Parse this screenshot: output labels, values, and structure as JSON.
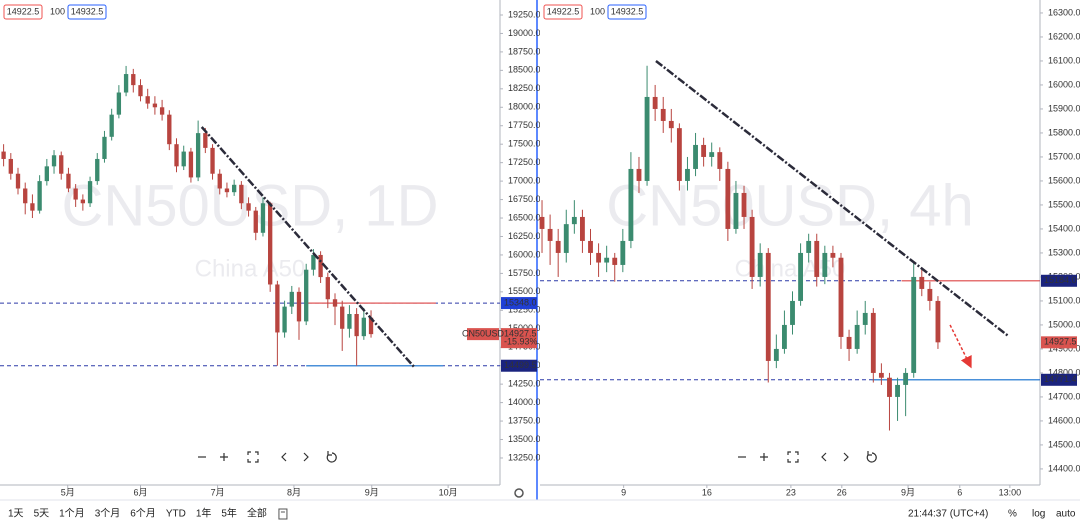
{
  "toolbar": {
    "ranges": [
      "1天",
      "5天",
      "1个月",
      "3个月",
      "6个月",
      "YTD",
      "1年",
      "5年",
      "全部"
    ],
    "time": "21:44:37 (UTC+4)",
    "options": [
      "%",
      "log",
      "auto"
    ]
  },
  "chart_data": [
    {
      "type": "candlestick",
      "watermark": "CN50USD, 1D",
      "description": "China A50",
      "legend": {
        "bid": 14922.5,
        "spread": 100,
        "ask": 14932.5
      },
      "up_color": "#3b8b6f",
      "down_color": "#b8443f",
      "xlim": [
        -0.5,
        68.9
      ],
      "ylim": [
        12884,
        19453
      ],
      "xticks": [
        {
          "value": 8.9,
          "label": "5月"
        },
        {
          "value": 19,
          "label": "6月"
        },
        {
          "value": 29.7,
          "label": "7月"
        },
        {
          "value": 40.3,
          "label": "8月"
        },
        {
          "value": 51.1,
          "label": "9月"
        },
        {
          "value": 61.7,
          "label": "10月"
        }
      ],
      "yticks": [
        {
          "value": 19250,
          "label": "19250.0"
        },
        {
          "value": 19000,
          "label": "19000.0"
        },
        {
          "value": 18750,
          "label": "18750.0"
        },
        {
          "value": 18500,
          "label": "18500.0"
        },
        {
          "value": 18250,
          "label": "18250.0"
        },
        {
          "value": 18000,
          "label": "18000.0"
        },
        {
          "value": 17750,
          "label": "17750.0"
        },
        {
          "value": 17500,
          "label": "17500.0"
        },
        {
          "value": 17250,
          "label": "17250.0"
        },
        {
          "value": 17000,
          "label": "17000.0"
        },
        {
          "value": 16750,
          "label": "16750.0"
        },
        {
          "value": 16500,
          "label": "16500.0"
        },
        {
          "value": 16250,
          "label": "16250.0"
        },
        {
          "value": 16000,
          "label": "16000.0"
        },
        {
          "value": 15750,
          "label": "15750.0"
        },
        {
          "value": 15500,
          "label": "15500.0"
        },
        {
          "value": 15250,
          "label": "15250.0"
        },
        {
          "value": 15000,
          "label": "15000.0"
        },
        {
          "value": 14750,
          "label": "14750.0"
        },
        {
          "value": 14500,
          "label": "14500.0"
        },
        {
          "value": 14250,
          "label": "14250.0"
        },
        {
          "value": 14000,
          "label": "14000.0"
        },
        {
          "value": 13750,
          "label": "13750.0"
        },
        {
          "value": 13500,
          "label": "13500.0"
        },
        {
          "value": 13250,
          "label": "13250.0"
        }
      ],
      "candles": [
        [
          17400,
          17500,
          17200,
          17300
        ],
        [
          17300,
          17380,
          17020,
          17100
        ],
        [
          17100,
          17180,
          16820,
          16900
        ],
        [
          16900,
          16980,
          16550,
          16700
        ],
        [
          16700,
          16820,
          16500,
          16600
        ],
        [
          16600,
          17080,
          16560,
          17000
        ],
        [
          17000,
          17300,
          16940,
          17200
        ],
        [
          17200,
          17420,
          17100,
          17350
        ],
        [
          17350,
          17400,
          17020,
          17100
        ],
        [
          17100,
          17180,
          16850,
          16900
        ],
        [
          16900,
          16960,
          16650,
          16750
        ],
        [
          16750,
          16820,
          16600,
          16700
        ],
        [
          16700,
          17060,
          16650,
          17000
        ],
        [
          17000,
          17380,
          16950,
          17300
        ],
        [
          17300,
          17680,
          17250,
          17600
        ],
        [
          17600,
          17980,
          17550,
          17900
        ],
        [
          17900,
          18300,
          17850,
          18200
        ],
        [
          18200,
          18560,
          18150,
          18450
        ],
        [
          18450,
          18520,
          18200,
          18300
        ],
        [
          18300,
          18380,
          18080,
          18150
        ],
        [
          18150,
          18250,
          17980,
          18050
        ],
        [
          18050,
          18150,
          17900,
          18000
        ],
        [
          18000,
          18100,
          17820,
          17900
        ],
        [
          17900,
          17960,
          17420,
          17500
        ],
        [
          17500,
          17580,
          17120,
          17200
        ],
        [
          17200,
          17480,
          17150,
          17400
        ],
        [
          17400,
          17450,
          16980,
          17050
        ],
        [
          17050,
          17820,
          17000,
          17650
        ],
        [
          17650,
          17720,
          17380,
          17450
        ],
        [
          17450,
          17500,
          17020,
          17100
        ],
        [
          17100,
          17160,
          16820,
          16900
        ],
        [
          16900,
          16980,
          16780,
          16850
        ],
        [
          16850,
          17020,
          16800,
          16950
        ],
        [
          16950,
          17000,
          16620,
          16700
        ],
        [
          16700,
          16780,
          16520,
          16600
        ],
        [
          16600,
          16650,
          16200,
          16300
        ],
        [
          16300,
          16780,
          16250,
          16700
        ],
        [
          16700,
          16720,
          15500,
          15600
        ],
        [
          15600,
          15650,
          14500,
          14950
        ],
        [
          14950,
          15380,
          14880,
          15300
        ],
        [
          15300,
          15580,
          15200,
          15500
        ],
        [
          15500,
          15560,
          14850,
          15100
        ],
        [
          15100,
          15880,
          15050,
          15800
        ],
        [
          15800,
          16080,
          15720,
          16000
        ],
        [
          16000,
          16050,
          15620,
          15700
        ],
        [
          15700,
          15760,
          15280,
          15400
        ],
        [
          15400,
          15480,
          15050,
          15300
        ],
        [
          15300,
          15380,
          14700,
          15000
        ],
        [
          15000,
          15320,
          14880,
          15200
        ],
        [
          15200,
          15280,
          14500,
          14900
        ],
        [
          14900,
          15280,
          14850,
          15150
        ],
        [
          15150,
          15250,
          14880,
          14927.5
        ]
      ],
      "hlines": [
        {
          "value": 15348,
          "color": "#2d3aa8"
        },
        {
          "value": 14499.5,
          "color": "#2d3aa8"
        }
      ],
      "segments": [
        {
          "from": 42,
          "to": 60,
          "value": 15348,
          "color": "#e57373"
        },
        {
          "from": 42,
          "to": 61,
          "value": 14499.5,
          "color": "#4a90d9"
        }
      ],
      "trendlines": [
        {
          "points": [
            [
              27.5,
              17733
            ],
            [
              57.1,
              14469
            ]
          ],
          "color": "#2b2b3a"
        }
      ],
      "price_labels": [
        {
          "value": 15348,
          "label": "15348.0",
          "color": "#1f3fd6"
        },
        {
          "value": 14499.5,
          "label": "14499.5",
          "color": "#1a237e"
        }
      ],
      "last": {
        "value": 14927.5,
        "label": "14927.5",
        "change": "-15.93%",
        "tag": "CN50USD",
        "color": "#d9534f"
      }
    },
    {
      "type": "candlestick",
      "watermark": "CN50USD, 4h",
      "description": "China A50",
      "legend": {
        "bid": 14922.5,
        "spread": 100,
        "ask": 14932.5
      },
      "up_color": "#3b8b6f",
      "down_color": "#b8443f",
      "xlim": [
        -0.25,
        61.63
      ],
      "ylim": [
        14333,
        16354
      ],
      "xticks": [
        {
          "value": 10.1,
          "label": "9"
        },
        {
          "value": 20.4,
          "label": "16"
        },
        {
          "value": 30.8,
          "label": "23"
        },
        {
          "value": 37.1,
          "label": "26"
        },
        {
          "value": 45.3,
          "label": "9月"
        },
        {
          "value": 51.7,
          "label": "6"
        },
        {
          "value": 57.9,
          "label": "13:00"
        }
      ],
      "yticks": [
        {
          "value": 16300,
          "label": "16300.0"
        },
        {
          "value": 16200,
          "label": "16200.0"
        },
        {
          "value": 16100,
          "label": "16100.0"
        },
        {
          "value": 16000,
          "label": "16000.0"
        },
        {
          "value": 15900,
          "label": "15900.0"
        },
        {
          "value": 15800,
          "label": "15800.0"
        },
        {
          "value": 15700,
          "label": "15700.0"
        },
        {
          "value": 15600,
          "label": "15600.0"
        },
        {
          "value": 15500,
          "label": "15500.0"
        },
        {
          "value": 15400,
          "label": "15400.0"
        },
        {
          "value": 15300,
          "label": "15300.0"
        },
        {
          "value": 15200,
          "label": "15200.0"
        },
        {
          "value": 15100,
          "label": "15100.0"
        },
        {
          "value": 15000,
          "label": "15000.0"
        },
        {
          "value": 14900,
          "label": "14900.0"
        },
        {
          "value": 14800,
          "label": "14800.0"
        },
        {
          "value": 14700,
          "label": "14700.0"
        },
        {
          "value": 14600,
          "label": "14600.0"
        },
        {
          "value": 14500,
          "label": "14500.0"
        },
        {
          "value": 14400,
          "label": "14400.0"
        }
      ],
      "candles": [
        [
          15450,
          15520,
          15300,
          15400
        ],
        [
          15400,
          15460,
          15250,
          15350
        ],
        [
          15350,
          15400,
          15200,
          15300
        ],
        [
          15300,
          15480,
          15260,
          15420
        ],
        [
          15420,
          15520,
          15380,
          15450
        ],
        [
          15450,
          15480,
          15300,
          15350
        ],
        [
          15350,
          15400,
          15250,
          15300
        ],
        [
          15300,
          15340,
          15200,
          15260
        ],
        [
          15260,
          15330,
          15220,
          15280
        ],
        [
          15280,
          15300,
          15180,
          15250
        ],
        [
          15250,
          15400,
          15220,
          15350
        ],
        [
          15350,
          15720,
          15320,
          15650
        ],
        [
          15650,
          15700,
          15550,
          15600
        ],
        [
          15600,
          16080,
          15580,
          15950
        ],
        [
          15950,
          16000,
          15850,
          15900
        ],
        [
          15900,
          15950,
          15800,
          15850
        ],
        [
          15850,
          15900,
          15760,
          15820
        ],
        [
          15820,
          15840,
          15560,
          15600
        ],
        [
          15600,
          15700,
          15560,
          15650
        ],
        [
          15650,
          15800,
          15620,
          15750
        ],
        [
          15750,
          15780,
          15660,
          15700
        ],
        [
          15700,
          15760,
          15660,
          15720
        ],
        [
          15720,
          15740,
          15600,
          15650
        ],
        [
          15650,
          15680,
          15350,
          15400
        ],
        [
          15400,
          15600,
          15380,
          15550
        ],
        [
          15550,
          15580,
          15400,
          15450
        ],
        [
          15450,
          15480,
          15150,
          15200
        ],
        [
          15200,
          15340,
          15160,
          15300
        ],
        [
          15300,
          15320,
          14760,
          14850
        ],
        [
          14850,
          14960,
          14820,
          14900
        ],
        [
          14900,
          15060,
          14880,
          15000
        ],
        [
          15000,
          15140,
          14960,
          15100
        ],
        [
          15100,
          15340,
          15080,
          15300
        ],
        [
          15300,
          15380,
          15260,
          15350
        ],
        [
          15350,
          15380,
          15160,
          15200
        ],
        [
          15200,
          15330,
          15170,
          15300
        ],
        [
          15300,
          15330,
          15240,
          15280
        ],
        [
          15280,
          15300,
          14900,
          14950
        ],
        [
          14950,
          14980,
          14850,
          14900
        ],
        [
          14900,
          15060,
          14880,
          15000
        ],
        [
          15000,
          15100,
          14960,
          15050
        ],
        [
          15050,
          15070,
          14760,
          14800
        ],
        [
          14800,
          14840,
          14750,
          14780
        ],
        [
          14780,
          14800,
          14560,
          14700
        ],
        [
          14700,
          14780,
          14600,
          14750
        ],
        [
          14750,
          14820,
          14620,
          14800
        ],
        [
          14800,
          15260,
          14780,
          15200
        ],
        [
          15200,
          15240,
          15120,
          15150
        ],
        [
          15150,
          15180,
          15060,
          15100
        ],
        [
          15100,
          15120,
          14900,
          14927.5
        ]
      ],
      "hlines": [
        {
          "value": 15184,
          "color": "#2d3aa8"
        },
        {
          "value": 14771.4,
          "color": "#2d3aa8"
        }
      ],
      "segments": [
        {
          "from": 44.5,
          "to": 61.6,
          "value": 15184,
          "color": "#e57373"
        },
        {
          "from": 40.8,
          "to": 61.6,
          "value": 14771.4,
          "color": "#4a90d9"
        }
      ],
      "trendlines": [
        {
          "points": [
            [
              14.1,
              16100
            ],
            [
              57.7,
              14954
            ]
          ],
          "color": "#2b2b3a"
        }
      ],
      "arrows": [
        {
          "points": [
            [
              50.5,
              15000
            ],
            [
              53,
              14830
            ]
          ],
          "color": "#e53935"
        }
      ],
      "price_labels": [
        {
          "value": 15184,
          "label": "15184.0",
          "color": "#1a237e"
        },
        {
          "value": 14771.4,
          "label": "14771.4",
          "color": "#1a237e"
        }
      ],
      "last": {
        "value": 14927.5,
        "label": "14927.5",
        "color": "#d9534f"
      }
    }
  ]
}
